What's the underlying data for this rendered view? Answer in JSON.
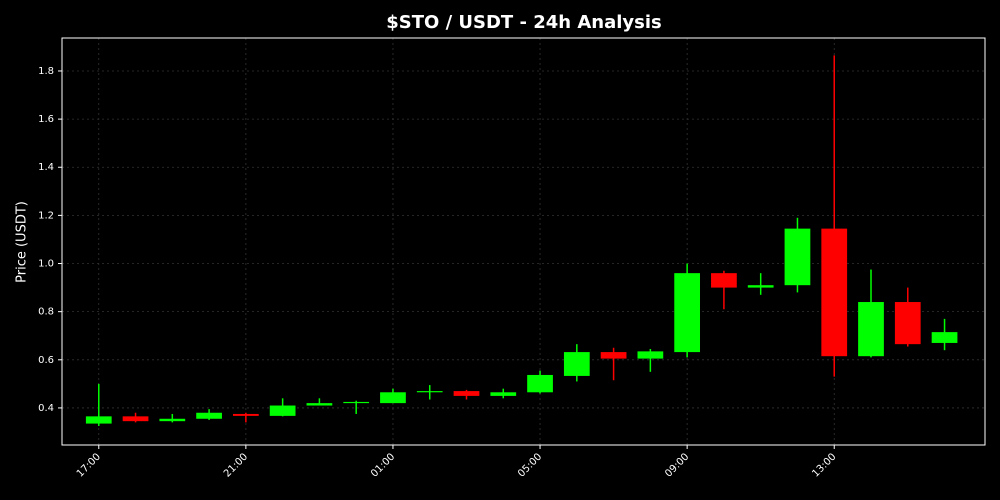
{
  "chart_data": {
    "type": "candlestick",
    "title": "$STO / USDT - 24h Analysis",
    "y_label": "Price (USDT)",
    "categories": [
      "17:00",
      null,
      null,
      null,
      "21:00",
      null,
      null,
      null,
      "01:00",
      null,
      null,
      null,
      "05:00",
      null,
      null,
      null,
      "09:00",
      null,
      null,
      null,
      "13:00",
      null,
      null,
      null
    ],
    "open": [
      0.335,
      0.365,
      0.345,
      0.355,
      0.375,
      0.367,
      0.41,
      0.42,
      0.42,
      0.465,
      0.47,
      0.45,
      0.465,
      0.533,
      0.632,
      0.605,
      0.632,
      0.96,
      0.9,
      0.91,
      1.145,
      0.615,
      0.84,
      0.67
    ],
    "high": [
      0.5,
      0.38,
      0.375,
      0.395,
      0.38,
      0.44,
      0.44,
      0.43,
      0.48,
      0.495,
      0.475,
      0.48,
      0.555,
      0.665,
      0.65,
      0.645,
      1.0,
      0.97,
      0.96,
      1.19,
      1.865,
      0.975,
      0.9,
      0.77
    ],
    "low": [
      0.325,
      0.34,
      0.34,
      0.35,
      0.34,
      0.365,
      0.41,
      0.375,
      0.42,
      0.435,
      0.435,
      0.44,
      0.46,
      0.51,
      0.515,
      0.55,
      0.61,
      0.81,
      0.87,
      0.88,
      0.53,
      0.61,
      0.655,
      0.64
    ],
    "close": [
      0.365,
      0.345,
      0.355,
      0.38,
      0.367,
      0.41,
      0.42,
      0.425,
      0.465,
      0.47,
      0.45,
      0.465,
      0.537,
      0.632,
      0.605,
      0.635,
      0.96,
      0.9,
      0.91,
      1.145,
      0.615,
      0.84,
      0.665,
      0.715
    ],
    "up_color": "#00ff00",
    "down_color": "#ff0000",
    "ylim": [
      0.246,
      1.937
    ],
    "yticks": [
      0.4,
      0.6,
      0.8,
      {
        "value": 1,
        "label": "1.0"
      },
      1.2,
      1.4,
      1.6,
      1.8
    ],
    "grid": true
  }
}
